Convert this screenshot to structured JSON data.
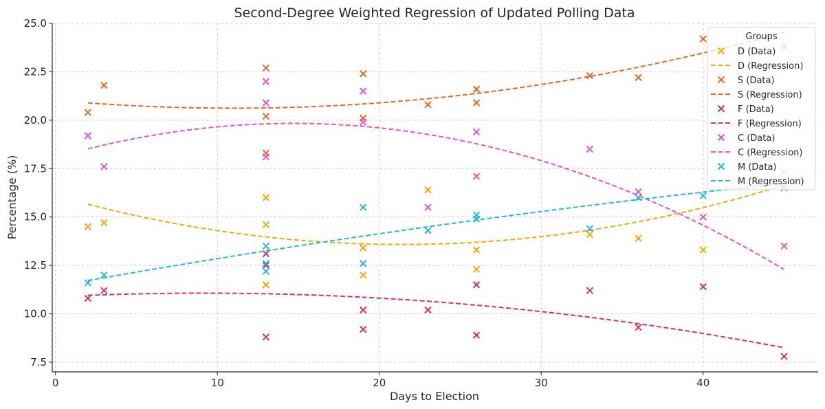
{
  "chart_data": {
    "type": "scatter",
    "title": "Second-Degree Weighted Regression of Updated Polling Data",
    "xlabel": "Days to Election",
    "ylabel": "Percentage (%)",
    "xlim": [
      -0.2,
      47.1
    ],
    "ylim": [
      7.0,
      25.0
    ],
    "xticks": [
      0,
      10,
      20,
      30,
      40
    ],
    "xtick_labels": [
      "0",
      "10",
      "20",
      "30",
      "40"
    ],
    "yticks": [
      7.5,
      10.0,
      12.5,
      15.0,
      17.5,
      20.0,
      22.5,
      25.0
    ],
    "ytick_labels": [
      "7.5",
      "10.0",
      "12.5",
      "15.0",
      "17.5",
      "20.0",
      "22.5",
      "25.0"
    ],
    "grid": true,
    "legend": {
      "title": "Groups",
      "placement": "top-right",
      "entries": [
        "D (Data)",
        "D (Regression)",
        "S (Data)",
        "S (Regression)",
        "F (Data)",
        "F (Regression)",
        "C (Data)",
        "C (Regression)",
        "M (Data)",
        "M (Regression)"
      ]
    },
    "series": [
      {
        "name": "D",
        "color": "#F5A800",
        "data_x": [
          2,
          3,
          13,
          13,
          13,
          19,
          19,
          23,
          26,
          26,
          33,
          36,
          40,
          45
        ],
        "data_y": [
          14.5,
          14.7,
          16.0,
          14.6,
          11.5,
          13.4,
          12.0,
          16.4,
          13.3,
          12.3,
          14.1,
          13.9,
          13.3,
          17.3
        ],
        "regression": [
          0.00552,
          -0.2364,
          16.11
        ],
        "fit_range": [
          2,
          45
        ]
      },
      {
        "name": "S",
        "color": "#E8661F",
        "data_x": [
          2,
          3,
          13,
          13,
          13,
          19,
          19,
          23,
          26,
          26,
          33,
          36,
          40,
          45
        ],
        "data_y": [
          20.4,
          21.8,
          22.7,
          20.2,
          18.3,
          22.4,
          20.1,
          20.8,
          21.6,
          20.9,
          22.3,
          22.2,
          24.2,
          23.8
        ],
        "regression": [
          0.00339,
          -0.0746,
          21.03
        ],
        "fit_range": [
          2,
          45
        ]
      },
      {
        "name": "F",
        "color": "#DE2F57",
        "data_x": [
          2,
          3,
          13,
          13,
          13,
          19,
          19,
          23,
          26,
          36,
          40,
          33,
          26,
          45
        ],
        "data_y": [
          10.8,
          11.2,
          13.1,
          12.5,
          8.8,
          10.2,
          9.2,
          10.2,
          11.5,
          9.3,
          11.4,
          11.2,
          8.9,
          7.8
        ],
        "regression": [
          -0.0022,
          0.0405,
          10.88
        ],
        "fit_range": [
          2,
          45
        ]
      },
      {
        "name": "C",
        "color": "#EB4FC4",
        "data_x": [
          2,
          3,
          13,
          13,
          13,
          19,
          19,
          23,
          26,
          26,
          33,
          36,
          40,
          45
        ],
        "data_y": [
          19.2,
          17.6,
          22.0,
          20.9,
          18.1,
          21.5,
          19.9,
          15.5,
          19.4,
          17.1,
          18.5,
          16.3,
          15.0,
          13.5
        ],
        "regression": [
          -0.0082,
          0.2406,
          18.07
        ],
        "fit_range": [
          2,
          45
        ]
      },
      {
        "name": "M",
        "color": "#22B5E5",
        "data_x": [
          2,
          3,
          13,
          13,
          13,
          19,
          19,
          23,
          26,
          26,
          33,
          36,
          40,
          45
        ],
        "data_y": [
          11.6,
          12.0,
          13.5,
          12.6,
          12.2,
          15.5,
          12.6,
          14.3,
          15.1,
          14.9,
          14.4,
          16.0,
          16.1,
          16.5
        ],
        "regression": [
          -0.00071,
          0.15,
          11.42
        ],
        "fit_range": [
          2,
          45
        ]
      }
    ]
  }
}
